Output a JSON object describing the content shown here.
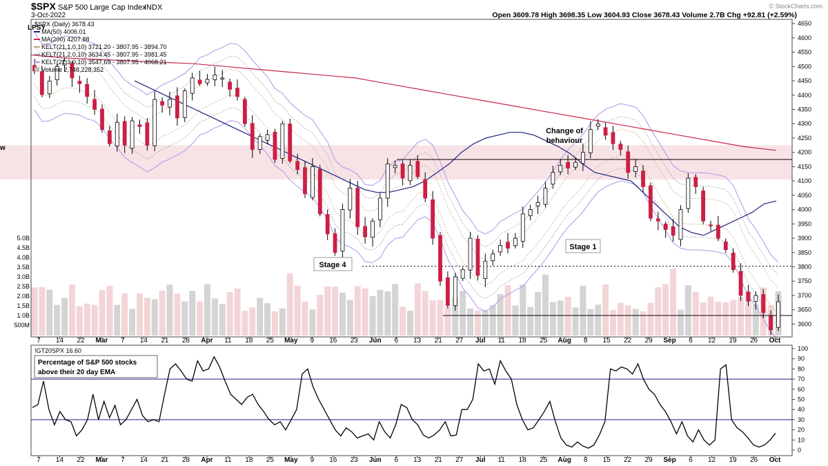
{
  "header": {
    "symbol": "$SPX",
    "name": "S&P 500 Large Cap Index",
    "exchange": "INDX",
    "date": "3-Oct-2022",
    "stats": "Open 3609.78  High 3698.35  Low 3604.93  Close 3678.43  Volume 2.7B  Chg +92.81 (+2.59%)",
    "watermark": "© StockCharts.com"
  },
  "legend": {
    "price_label": "$SPX (Daily) 3678.43",
    "ma50": "MA(50) 4006.01",
    "ma200": "MA(200) 4207.88",
    "kelt1": "KELT(21,1.0,10) 3721.20 - 3807.95 - 3894.70",
    "kelt2": "KELT(21,2.0,10) 3634.45 - 3807.95 - 3981.45",
    "kelt3": "KELT(21,3.0,10) 3547.69 - 3807.95 - 4068.21",
    "volume": "Volume 2,748,228,352",
    "zone_label_fragment": "w",
    "price_stub": "LPSY"
  },
  "annotations": {
    "change_of_behaviour_1": "Change of",
    "change_of_behaviour_2": "behaviour",
    "stage4": "Stage 4",
    "stage1": "Stage 1",
    "indicator_title": "!GT20SPX 16.60",
    "indicator_box_1": "Percentage of S&P 500 stocks",
    "indicator_box_2": "above their 20 day EMA"
  },
  "colors": {
    "up": "#ffffff",
    "down": "#cc1f45",
    "ma50": "#1a237e",
    "ma200": "#c62848",
    "kelt1": "#c8a472",
    "kelt2": "#9a9a9a",
    "kelt3": "#b59de8",
    "zone": "#f7e3e6",
    "vol_up": "#d4d4d4",
    "vol_down": "#f3d5d8"
  },
  "chart_data": [
    {
      "type": "candlestick",
      "title": "$SPX (Daily)",
      "y_axis_ticks": [
        3600,
        3650,
        3700,
        3750,
        3800,
        3850,
        3900,
        3950,
        4000,
        4050,
        4100,
        4150,
        4200,
        4250,
        4300,
        4350,
        4400,
        4450,
        4500,
        4550,
        4600,
        4650
      ],
      "ylim": [
        3560,
        4660
      ],
      "volume_axis_labels": [
        "500M",
        "1.0B",
        "1.5B",
        "2.0B",
        "2.5B",
        "3.0B",
        "3.5B",
        "4.0B",
        "4.5B",
        "5.0B"
      ],
      "x_tick_labels": [
        "7",
        "14",
        "22",
        "Mar",
        "7",
        "14",
        "21",
        "28",
        "Apr",
        "11",
        "18",
        "25",
        "May",
        "9",
        "16",
        "23",
        "Jun",
        "6",
        "13",
        "21",
        "27",
        "Jul",
        "11",
        "18",
        "25",
        "Aug",
        "8",
        "15",
        "22",
        "29",
        "Sep",
        "6",
        "12",
        "19",
        "26",
        "Oct"
      ],
      "x_tick_bold": [
        "Mar",
        "Apr",
        "May",
        "Jun",
        "Jul",
        "Aug",
        "Sep",
        "Oct"
      ],
      "horizontal_lines": [
        {
          "value": 4175,
          "style": "solid",
          "from": "Jun 1",
          "to": "end"
        },
        {
          "value": 3802,
          "style": "dotted",
          "from": "May 20",
          "to": "end"
        },
        {
          "value": 3630,
          "style": "solid",
          "from": "Jun 16",
          "to": "end"
        }
      ],
      "zone": {
        "from": 4105,
        "to": 4225
      },
      "series_close": [
        4484,
        4402,
        4449,
        4500,
        4520,
        4460,
        4440,
        4395,
        4350,
        4280,
        4230,
        4305,
        4225,
        4310,
        4290,
        4225,
        4385,
        4365,
        4385,
        4320,
        4415,
        4460,
        4440,
        4455,
        4470,
        4460,
        4420,
        4395,
        4300,
        4210,
        4255,
        4262,
        4175,
        4300,
        4170,
        4140,
        4055,
        4150,
        3985,
        3915,
        3850,
        4000,
        4075,
        3940,
        3905,
        3960,
        4040,
        4160,
        4155,
        4110,
        4155,
        4115,
        4040,
        3900,
        3750,
        3665,
        3765,
        3790,
        3900,
        3770,
        3820,
        3845,
        3875,
        3865,
        3900,
        3985,
        4000,
        4025,
        4075,
        4130,
        4155,
        4145,
        4165,
        4200,
        4280,
        4300,
        4260,
        4230,
        4210,
        4130,
        4150,
        4080,
        3970,
        3960,
        3930,
        3910,
        4000,
        4110,
        4080,
        3960,
        3945,
        3900,
        3860,
        3790,
        3700,
        3680,
        3700,
        3640,
        3580,
        3678
      ],
      "ma50": [
        4450,
        4430,
        4410,
        4390,
        4370,
        4350,
        4330,
        4310,
        4290,
        4270,
        4250,
        4230,
        4210,
        4190,
        4170,
        4150,
        4130,
        4110,
        4090,
        4070,
        4060,
        4060,
        4070,
        4080,
        4100,
        4130,
        4160,
        4200,
        4230,
        4250,
        4260,
        4270,
        4270,
        4260,
        4240,
        4220,
        4195,
        4160,
        4130,
        4120,
        4110,
        4100,
        4060,
        4020,
        3980,
        3940,
        3920,
        3910,
        3930,
        3950,
        3970,
        3990,
        4020,
        4030
      ],
      "ma200": [
        4540,
        4530,
        4525,
        4520,
        4515,
        4510,
        4500,
        4490,
        4480,
        4470,
        4460,
        4440,
        4420,
        4400,
        4380,
        4360,
        4340,
        4320,
        4300,
        4280,
        4260,
        4240,
        4220,
        4207
      ]
    },
    {
      "type": "line",
      "title": "!GT20SPX 16.60",
      "ylim": [
        0,
        100
      ],
      "y_axis_ticks": [
        0,
        10,
        20,
        30,
        40,
        50,
        60,
        70,
        80,
        90,
        100
      ],
      "reference_lines": [
        30,
        70
      ],
      "values": [
        42,
        45,
        68,
        40,
        25,
        38,
        30,
        28,
        14,
        20,
        30,
        55,
        30,
        48,
        32,
        44,
        25,
        30,
        40,
        50,
        34,
        28,
        30,
        28,
        55,
        80,
        85,
        78,
        70,
        68,
        88,
        78,
        80,
        92,
        82,
        68,
        55,
        50,
        45,
        52,
        55,
        45,
        38,
        30,
        25,
        28,
        20,
        30,
        40,
        75,
        80,
        62,
        50,
        40,
        30,
        20,
        14,
        22,
        18,
        12,
        14,
        16,
        10,
        28,
        18,
        12,
        25,
        45,
        42,
        30,
        25,
        15,
        12,
        15,
        20,
        28,
        14,
        15,
        40,
        40,
        50,
        85,
        78,
        80,
        65,
        88,
        78,
        70,
        45,
        30,
        20,
        22,
        30,
        38,
        48,
        28,
        12,
        5,
        3,
        8,
        4,
        2,
        5,
        15,
        28,
        80,
        78,
        82,
        80,
        75,
        85,
        70,
        60,
        55,
        45,
        38,
        28,
        16,
        28,
        14,
        8,
        20,
        10,
        5,
        10,
        80,
        84,
        30,
        22,
        18,
        12,
        5,
        3,
        5,
        10,
        16.6
      ]
    }
  ]
}
